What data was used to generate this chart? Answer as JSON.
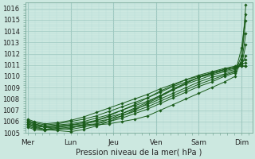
{
  "title": "",
  "xlabel": "Pression niveau de la mer( hPa )",
  "ylabel": "",
  "ylim": [
    1005,
    1016.5
  ],
  "yticks": [
    1005,
    1006,
    1007,
    1008,
    1009,
    1010,
    1011,
    1012,
    1013,
    1014,
    1015,
    1016
  ],
  "xtick_labels": [
    "Mer",
    "Lun",
    "Jeu",
    "Ven",
    "Sam",
    "Dim"
  ],
  "xtick_positions": [
    0,
    1,
    2,
    3,
    4,
    5
  ],
  "bg_color": "#cce8e0",
  "line_color": "#1a5c1a",
  "grid_major_color": "#9ec8c0",
  "grid_minor_color": "#b8dcd8",
  "lines": [
    {
      "x": [
        0,
        0.15,
        0.4,
        0.7,
        1.0,
        1.3,
        1.6,
        1.9,
        2.2,
        2.5,
        2.8,
        3.1,
        3.4,
        3.7,
        4.0,
        4.3,
        4.6,
        4.85,
        5.0,
        5.1
      ],
      "y": [
        1005.5,
        1005.3,
        1005.2,
        1005.4,
        1005.5,
        1005.6,
        1005.7,
        1005.8,
        1006.0,
        1006.2,
        1006.5,
        1007.0,
        1007.5,
        1008.0,
        1008.5,
        1009.0,
        1009.5,
        1010.0,
        1011.5,
        1016.3
      ]
    },
    {
      "x": [
        0,
        0.15,
        0.4,
        0.7,
        1.0,
        1.3,
        1.6,
        1.9,
        2.2,
        2.5,
        2.8,
        3.1,
        3.4,
        3.7,
        4.0,
        4.3,
        4.6,
        4.85,
        5.0,
        5.1
      ],
      "y": [
        1005.6,
        1005.4,
        1005.3,
        1005.5,
        1005.6,
        1005.7,
        1005.8,
        1006.0,
        1006.3,
        1006.7,
        1007.1,
        1007.6,
        1008.1,
        1008.6,
        1009.1,
        1009.5,
        1010.0,
        1010.3,
        1012.5,
        1015.5
      ]
    },
    {
      "x": [
        0,
        0.15,
        0.4,
        0.7,
        1.0,
        1.3,
        1.6,
        1.9,
        2.2,
        2.5,
        2.8,
        3.1,
        3.4,
        3.7,
        4.0,
        4.3,
        4.6,
        4.85,
        5.0,
        5.1
      ],
      "y": [
        1005.8,
        1005.6,
        1005.5,
        1005.6,
        1005.7,
        1005.8,
        1006.0,
        1006.2,
        1006.5,
        1006.9,
        1007.3,
        1007.8,
        1008.3,
        1008.8,
        1009.3,
        1009.7,
        1010.1,
        1010.4,
        1011.8,
        1014.9
      ]
    },
    {
      "x": [
        0,
        0.15,
        0.4,
        0.7,
        1.0,
        1.3,
        1.6,
        1.9,
        2.2,
        2.5,
        2.8,
        3.1,
        3.4,
        3.7,
        4.0,
        4.3,
        4.6,
        4.85,
        5.0,
        5.1
      ],
      "y": [
        1005.9,
        1005.7,
        1005.5,
        1005.6,
        1005.7,
        1005.9,
        1006.1,
        1006.4,
        1006.7,
        1007.1,
        1007.5,
        1008.0,
        1008.5,
        1009.0,
        1009.5,
        1009.9,
        1010.2,
        1010.5,
        1011.2,
        1013.8
      ]
    },
    {
      "x": [
        0,
        0.15,
        0.4,
        0.7,
        1.0,
        1.3,
        1.6,
        1.9,
        2.2,
        2.5,
        2.8,
        3.1,
        3.4,
        3.7,
        4.0,
        4.3,
        4.6,
        4.85,
        5.0,
        5.1
      ],
      "y": [
        1006.0,
        1005.8,
        1005.6,
        1005.7,
        1005.8,
        1006.0,
        1006.3,
        1006.6,
        1007.0,
        1007.4,
        1007.8,
        1008.3,
        1008.8,
        1009.3,
        1009.7,
        1010.1,
        1010.4,
        1010.6,
        1011.0,
        1012.8
      ]
    },
    {
      "x": [
        0,
        0.15,
        0.4,
        0.7,
        1.0,
        1.3,
        1.6,
        1.9,
        2.2,
        2.5,
        2.8,
        3.1,
        3.4,
        3.7,
        4.0,
        4.3,
        4.6,
        4.85,
        5.0,
        5.1
      ],
      "y": [
        1006.1,
        1005.9,
        1005.7,
        1005.8,
        1006.0,
        1006.2,
        1006.5,
        1006.9,
        1007.3,
        1007.7,
        1008.1,
        1008.6,
        1009.1,
        1009.5,
        1009.9,
        1010.2,
        1010.5,
        1010.7,
        1011.1,
        1011.8
      ]
    },
    {
      "x": [
        0,
        0.15,
        0.4,
        0.7,
        1.0,
        1.3,
        1.6,
        1.9,
        2.2,
        2.5,
        2.8,
        3.1,
        3.4,
        3.7,
        4.0,
        4.3,
        4.6,
        4.85,
        5.0,
        5.1
      ],
      "y": [
        1006.2,
        1006.0,
        1005.8,
        1005.9,
        1006.1,
        1006.4,
        1006.8,
        1007.2,
        1007.6,
        1008.0,
        1008.4,
        1008.9,
        1009.3,
        1009.7,
        1010.0,
        1010.3,
        1010.6,
        1010.8,
        1011.1,
        1011.2
      ]
    },
    {
      "x": [
        0,
        0.15,
        0.4,
        0.7,
        1.0,
        1.3,
        1.6,
        1.9,
        2.2,
        2.5,
        2.8,
        3.1,
        3.4,
        3.7,
        4.0,
        4.3,
        4.6,
        4.85,
        5.0,
        5.1
      ],
      "y": [
        1006.0,
        1005.8,
        1005.5,
        1005.4,
        1005.3,
        1005.5,
        1005.8,
        1006.2,
        1006.7,
        1007.2,
        1007.7,
        1008.3,
        1008.9,
        1009.4,
        1009.9,
        1010.3,
        1010.6,
        1010.8,
        1010.9,
        1010.9
      ]
    },
    {
      "x": [
        0,
        0.15,
        0.4,
        0.7,
        1.0,
        1.3,
        1.6,
        1.9,
        2.2,
        2.5,
        2.8,
        3.1,
        3.4,
        3.7,
        4.0,
        4.3,
        4.6,
        4.85,
        5.0,
        5.1
      ],
      "y": [
        1005.8,
        1005.6,
        1005.3,
        1005.2,
        1005.1,
        1005.3,
        1005.6,
        1006.0,
        1006.5,
        1007.0,
        1007.6,
        1008.2,
        1008.8,
        1009.4,
        1009.9,
        1010.3,
        1010.6,
        1010.8,
        1010.9,
        1010.9
      ]
    },
    {
      "x": [
        0,
        0.15,
        0.4,
        0.7,
        1.0,
        1.3,
        1.6,
        1.9,
        2.2,
        2.5,
        2.8,
        3.1,
        3.4,
        3.7,
        4.0,
        4.3,
        4.6,
        4.85,
        5.0,
        5.1
      ],
      "y": [
        1005.7,
        1005.5,
        1005.3,
        1005.3,
        1005.4,
        1005.7,
        1006.1,
        1006.5,
        1007.0,
        1007.5,
        1008.1,
        1008.7,
        1009.2,
        1009.7,
        1010.1,
        1010.4,
        1010.7,
        1010.9,
        1011.2,
        1011.5
      ]
    }
  ]
}
